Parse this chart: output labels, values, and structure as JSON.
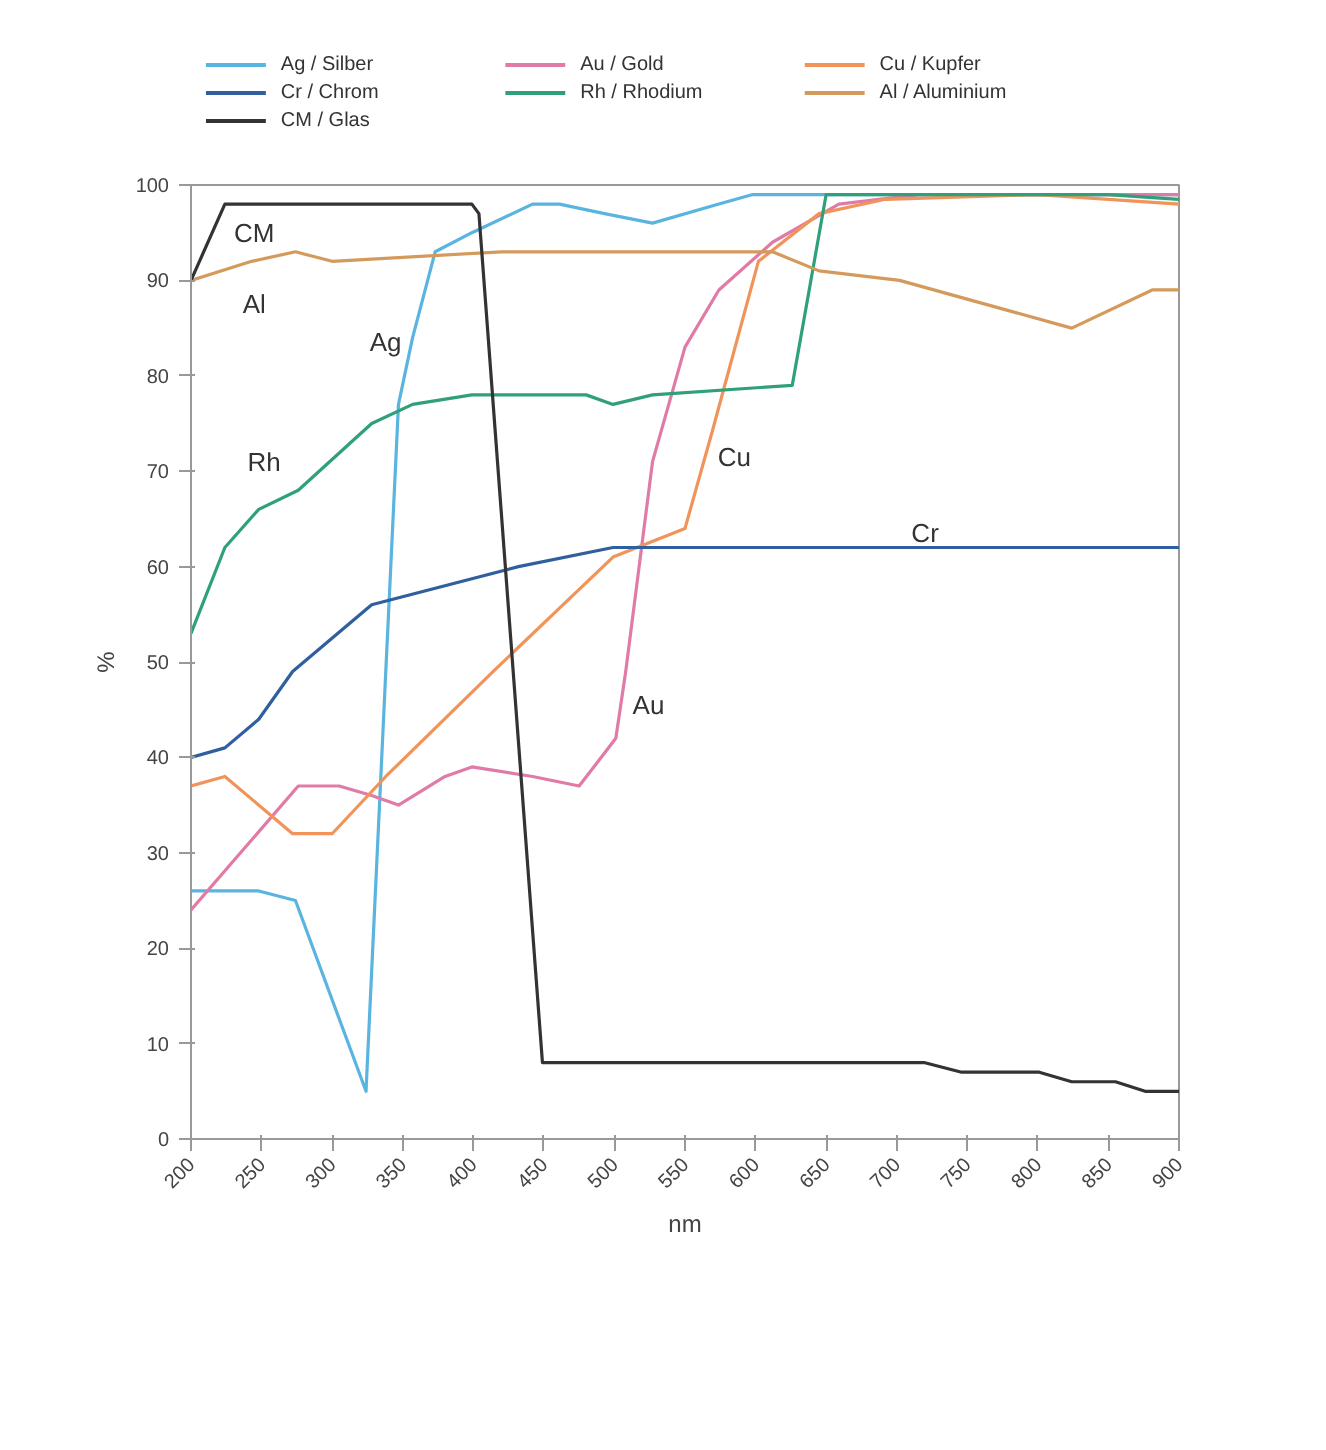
{
  "chart_data": {
    "type": "line",
    "xlabel": "nm",
    "ylabel": "%",
    "legend": "top",
    "grid": false,
    "marker": "none",
    "line_style": "solid",
    "xlim": [
      200,
      900
    ],
    "xticks": [
      200,
      250,
      300,
      350,
      400,
      450,
      500,
      550,
      600,
      650,
      700,
      750,
      800,
      850,
      900
    ],
    "ylim": [
      0,
      100
    ],
    "yticks": [
      0,
      10,
      20,
      30,
      40,
      50,
      60,
      70,
      80,
      90,
      100
    ],
    "series": [
      {
        "name": "Ag / Silber",
        "color": "#5ab4e0",
        "x": [
          200,
          225,
          248,
          274,
          324,
          338,
          347,
          357,
          373,
          399,
          442,
          461,
          493,
          527,
          574,
          598,
          700,
          900
        ],
        "values": [
          26,
          26,
          26,
          25,
          5,
          49,
          77,
          84,
          93,
          95,
          98,
          98,
          97,
          96,
          98,
          99,
          99,
          99
        ]
      },
      {
        "name": "Au / Gold",
        "color": "#e07aa6",
        "x": [
          200,
          276,
          305,
          328,
          347,
          380,
          399,
          442,
          475,
          501,
          508,
          527,
          550,
          574,
          612,
          659,
          716,
          900
        ],
        "values": [
          24,
          37,
          37,
          36,
          35,
          38,
          39,
          38,
          37,
          42,
          49,
          71,
          83,
          89,
          94,
          98,
          99,
          99
        ]
      },
      {
        "name": "Cu / Kupfer",
        "color": "#f0945a",
        "x": [
          200,
          224,
          272,
          300,
          338,
          414,
          499,
          550,
          569,
          602,
          645,
          692,
          800,
          900
        ],
        "values": [
          37,
          38,
          32,
          32,
          38,
          49,
          61,
          64,
          74,
          92,
          97,
          98.5,
          99,
          98
        ]
      },
      {
        "name": "Cr / Chrom",
        "color": "#2f5f9e",
        "x": [
          200,
          224,
          248,
          272,
          328,
          432,
          499,
          900
        ],
        "values": [
          40,
          41,
          44,
          49,
          56,
          60,
          62,
          62
        ]
      },
      {
        "name": "Rh / Rhodium",
        "color": "#2fa07a",
        "x": [
          200,
          224,
          248,
          276,
          328,
          357,
          399,
          480,
          499,
          527,
          626,
          650,
          850,
          900
        ],
        "values": [
          53,
          62,
          66,
          68,
          75,
          77,
          78,
          78,
          77,
          78,
          79,
          99,
          99,
          98.5
        ]
      },
      {
        "name": "Al / Aluminium",
        "color": "#d49a5c",
        "x": [
          200,
          243,
          274,
          300,
          420,
          612,
          645,
          702,
          824,
          881,
          900
        ],
        "values": [
          90,
          92,
          93,
          92,
          93,
          93,
          91,
          90,
          85,
          89,
          89
        ]
      },
      {
        "name": "CM / Glas",
        "color": "#333333",
        "x": [
          200,
          224,
          399,
          404,
          449,
          720,
          746,
          801,
          824,
          855,
          876,
          900
        ],
        "values": [
          90,
          98,
          98,
          97,
          8,
          8,
          7,
          7,
          6,
          6,
          5,
          5
        ]
      }
    ],
    "annotations": [
      "CM",
      "Al",
      "Ag",
      "Rh",
      "Cu",
      "Cr",
      "Au"
    ]
  }
}
